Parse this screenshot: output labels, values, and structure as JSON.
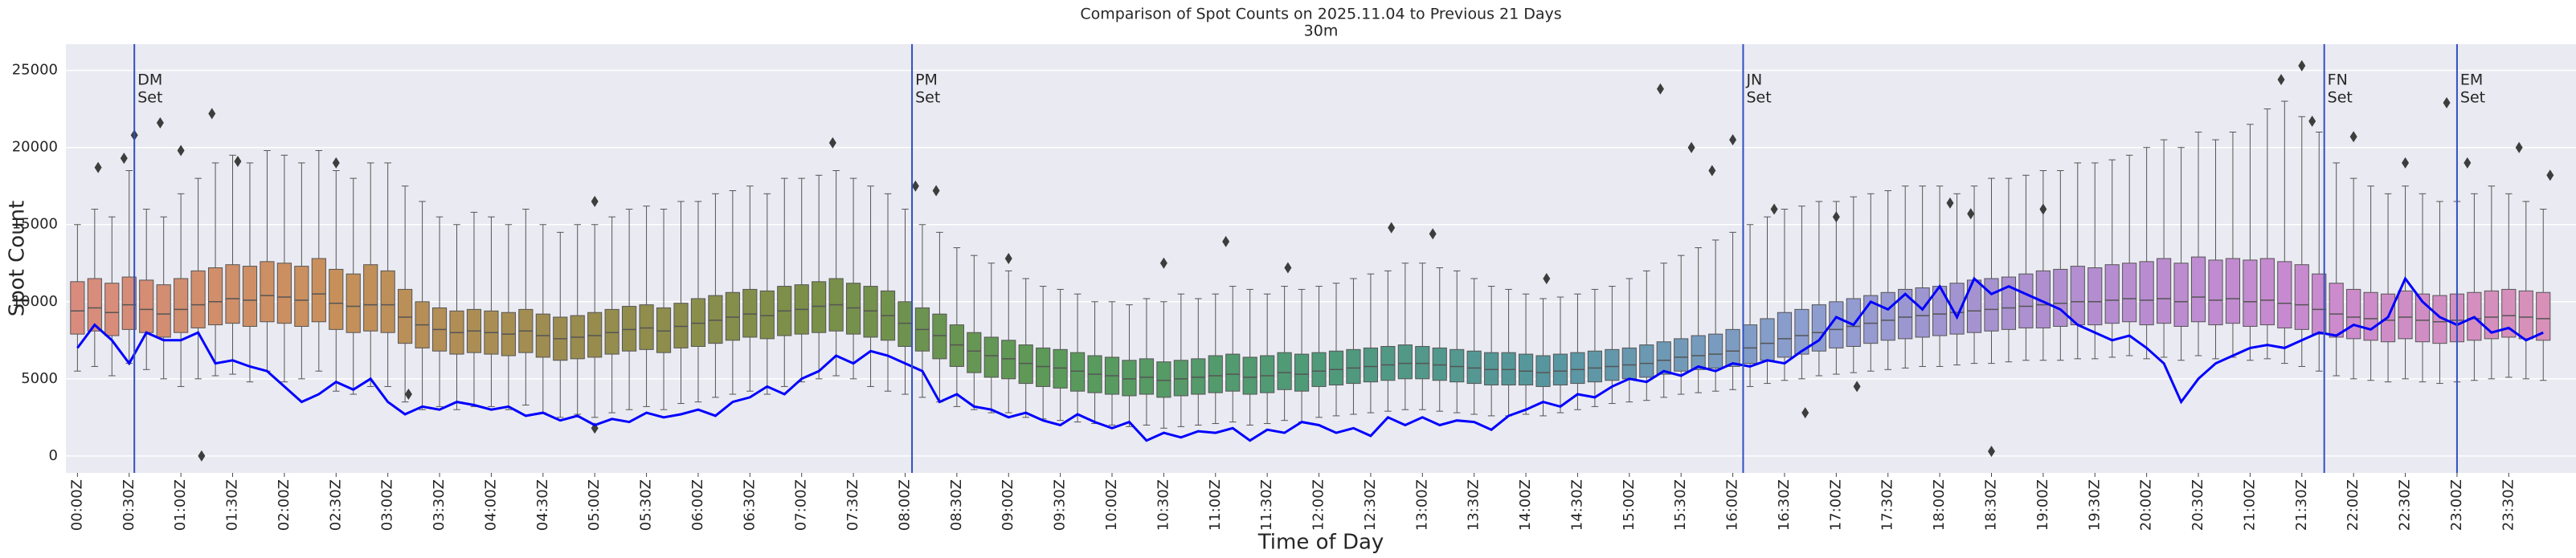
{
  "chart_data": {
    "type": "box",
    "title": "Comparison of Spot Counts on 2025.11.04 to Previous 21 Days",
    "subtitle": "30m",
    "xlabel": "Time of Day",
    "ylabel": "Spot Count",
    "ylim": [
      -1100,
      26700
    ],
    "yticks": [
      0,
      5000,
      10000,
      15000,
      20000,
      25000
    ],
    "xlim": [
      -0.67,
      144.9
    ],
    "grid": true,
    "categories": [
      "00:00Z",
      null,
      null,
      "00:30Z",
      null,
      null,
      "01:00Z",
      null,
      null,
      "01:30Z",
      null,
      null,
      "02:00Z",
      null,
      null,
      "02:30Z",
      null,
      null,
      "03:00Z",
      null,
      null,
      "03:30Z",
      null,
      null,
      "04:00Z",
      null,
      null,
      "04:30Z",
      null,
      null,
      "05:00Z",
      null,
      null,
      "05:30Z",
      null,
      null,
      "06:00Z",
      null,
      null,
      "06:30Z",
      null,
      null,
      "07:00Z",
      null,
      null,
      "07:30Z",
      null,
      null,
      "08:00Z",
      null,
      null,
      "08:30Z",
      null,
      null,
      "09:00Z",
      null,
      null,
      "09:30Z",
      null,
      null,
      "10:00Z",
      null,
      null,
      "10:30Z",
      null,
      null,
      "11:00Z",
      null,
      null,
      "11:30Z",
      null,
      null,
      "12:00Z",
      null,
      null,
      "12:30Z",
      null,
      null,
      "13:00Z",
      null,
      null,
      "13:30Z",
      null,
      null,
      "14:00Z",
      null,
      null,
      "14:30Z",
      null,
      null,
      "15:00Z",
      null,
      null,
      "15:30Z",
      null,
      null,
      "16:00Z",
      null,
      null,
      "16:30Z",
      null,
      null,
      "17:00Z",
      null,
      null,
      "17:30Z",
      null,
      null,
      "18:00Z",
      null,
      null,
      "18:30Z",
      null,
      null,
      "19:00Z",
      null,
      null,
      "19:30Z",
      null,
      null,
      "20:00Z",
      null,
      null,
      "20:30Z",
      null,
      null,
      "21:00Z",
      null,
      null,
      "21:30Z",
      null,
      null,
      "22:00Z",
      null,
      null,
      "22:30Z",
      null,
      null,
      "23:00Z",
      null,
      null,
      "23:30Z",
      null,
      null
    ],
    "palette": [
      "#d98c7e",
      "#c9905c",
      "#9a8c4f",
      "#7a8f48",
      "#5a9a5a",
      "#4f9a78",
      "#5796a0",
      "#8c9ed0",
      "#b08ed0",
      "#c88ad0",
      "#d890b8"
    ],
    "boxes": {
      "median": [
        9400,
        9600,
        9300,
        9800,
        9500,
        9200,
        9500,
        9800,
        10000,
        10200,
        10100,
        10400,
        10300,
        10100,
        10500,
        9900,
        9700,
        9800,
        9800,
        9000,
        8500,
        8200,
        8000,
        8100,
        8000,
        7900,
        8100,
        7800,
        7600,
        7700,
        7800,
        8000,
        8200,
        8300,
        8100,
        8400,
        8600,
        8800,
        9000,
        9200,
        9100,
        9400,
        9500,
        9700,
        9800,
        9600,
        9400,
        9100,
        8600,
        8200,
        7800,
        7200,
        6800,
        6500,
        6300,
        6000,
        5800,
        5700,
        5500,
        5300,
        5200,
        5000,
        5100,
        4900,
        5000,
        5100,
        5200,
        5300,
        5100,
        5200,
        5400,
        5300,
        5500,
        5600,
        5700,
        5800,
        5900,
        6000,
        6000,
        5900,
        5800,
        5700,
        5600,
        5600,
        5500,
        5400,
        5500,
        5600,
        5700,
        5800,
        5900,
        6000,
        6200,
        6400,
        6500,
        6600,
        6800,
        7000,
        7300,
        7600,
        7800,
        8000,
        8200,
        8400,
        8600,
        8800,
        9000,
        9100,
        9200,
        9300,
        9400,
        9500,
        9600,
        9700,
        9800,
        9900,
        10000,
        10000,
        10100,
        10200,
        10100,
        10200,
        10000,
        10300,
        10100,
        10200,
        10000,
        10100,
        9900,
        9800,
        9500,
        9200,
        9000,
        8900,
        8800,
        9000,
        8800,
        8700,
        8800,
        8900,
        9000,
        9100,
        9000,
        8900
      ],
      "q1": [
        7900,
        8100,
        7800,
        8200,
        8000,
        7700,
        8000,
        8300,
        8500,
        8600,
        8400,
        8700,
        8600,
        8400,
        8700,
        8200,
        8000,
        8100,
        8000,
        7300,
        7000,
        6800,
        6600,
        6700,
        6600,
        6500,
        6700,
        6400,
        6200,
        6300,
        6400,
        6600,
        6800,
        6900,
        6700,
        7000,
        7100,
        7300,
        7500,
        7700,
        7600,
        7800,
        7900,
        8000,
        8100,
        7900,
        7700,
        7500,
        7100,
        6800,
        6300,
        5800,
        5400,
        5100,
        5000,
        4700,
        4500,
        4400,
        4200,
        4100,
        4000,
        3900,
        4000,
        3800,
        3900,
        4000,
        4100,
        4200,
        4000,
        4100,
        4300,
        4200,
        4500,
        4600,
        4700,
        4800,
        4900,
        5000,
        5000,
        4900,
        4800,
        4700,
        4600,
        4600,
        4600,
        4500,
        4600,
        4700,
        4800,
        4900,
        5000,
        5100,
        5300,
        5500,
        5600,
        5700,
        5800,
        6000,
        6200,
        6400,
        6600,
        6800,
        7000,
        7100,
        7300,
        7500,
        7600,
        7700,
        7800,
        7900,
        8000,
        8100,
        8200,
        8300,
        8300,
        8400,
        8500,
        8500,
        8600,
        8700,
        8500,
        8600,
        8400,
        8700,
        8500,
        8600,
        8400,
        8500,
        8300,
        8200,
        7900,
        7700,
        7600,
        7500,
        7400,
        7600,
        7400,
        7300,
        7400,
        7500,
        7600,
        7700,
        7600,
        7500
      ],
      "q3": [
        11300,
        11500,
        11200,
        11600,
        11400,
        11100,
        11500,
        12000,
        12200,
        12400,
        12300,
        12600,
        12500,
        12300,
        12800,
        12100,
        11800,
        12400,
        12000,
        10800,
        10000,
        9600,
        9400,
        9500,
        9400,
        9300,
        9500,
        9200,
        9000,
        9100,
        9300,
        9500,
        9700,
        9800,
        9600,
        9900,
        10200,
        10400,
        10600,
        10800,
        10700,
        11000,
        11100,
        11300,
        11500,
        11200,
        11000,
        10700,
        10000,
        9600,
        9200,
        8500,
        8000,
        7700,
        7500,
        7200,
        7000,
        6900,
        6700,
        6500,
        6400,
        6200,
        6300,
        6100,
        6200,
        6300,
        6500,
        6600,
        6400,
        6500,
        6700,
        6600,
        6700,
        6800,
        6900,
        7000,
        7100,
        7200,
        7100,
        7000,
        6900,
        6800,
        6700,
        6700,
        6600,
        6500,
        6600,
        6700,
        6800,
        6900,
        7000,
        7200,
        7400,
        7600,
        7800,
        7900,
        8200,
        8500,
        8900,
        9300,
        9500,
        9800,
        10000,
        10200,
        10400,
        10600,
        10800,
        10900,
        11000,
        11200,
        11400,
        11500,
        11600,
        11800,
        12000,
        12100,
        12300,
        12200,
        12400,
        12500,
        12600,
        12800,
        12500,
        12900,
        12700,
        12800,
        12700,
        12800,
        12600,
        12400,
        11800,
        11200,
        10800,
        10600,
        10500,
        10700,
        10500,
        10400,
        10500,
        10600,
        10700,
        10800,
        10700,
        10600
      ],
      "whislo": [
        5500,
        5800,
        5200,
        6000,
        5600,
        5000,
        4500,
        5000,
        5200,
        5300,
        4800,
        5500,
        4800,
        5000,
        5500,
        4200,
        4000,
        4500,
        4500,
        3500,
        3000,
        3200,
        3000,
        3200,
        3200,
        3000,
        3300,
        2800,
        2500,
        2700,
        2500,
        2800,
        3000,
        3200,
        3000,
        3400,
        3500,
        3800,
        4000,
        4200,
        4000,
        4500,
        4800,
        5000,
        5200,
        5000,
        4500,
        4200,
        4000,
        3800,
        3500,
        3200,
        3000,
        2800,
        2800,
        2500,
        2400,
        2300,
        2200,
        2100,
        2000,
        1900,
        2000,
        1800,
        1900,
        2000,
        2100,
        2200,
        2000,
        2100,
        2300,
        2200,
        2500,
        2600,
        2700,
        2800,
        2900,
        3000,
        3000,
        2900,
        2800,
        2700,
        2600,
        2600,
        2700,
        2600,
        2800,
        3000,
        3200,
        3400,
        3500,
        3600,
        3800,
        4000,
        4100,
        4200,
        4300,
        4500,
        4700,
        4900,
        5000,
        5200,
        5300,
        5400,
        5500,
        5600,
        5700,
        5800,
        5800,
        5900,
        6000,
        6000,
        6100,
        6200,
        6200,
        6200,
        6300,
        6300,
        6400,
        6500,
        6300,
        6400,
        6200,
        6500,
        6300,
        6400,
        6200,
        6300,
        6000,
        5800,
        5500,
        5200,
        5000,
        4900,
        4800,
        5000,
        4800,
        4700,
        4800,
        4900,
        5000,
        5100,
        5000,
        4900
      ],
      "whishi": [
        15000,
        16000,
        15500,
        18500,
        16000,
        15500,
        17000,
        18000,
        19000,
        19500,
        19000,
        19800,
        19500,
        19000,
        19800,
        18500,
        18000,
        19000,
        19000,
        17500,
        16500,
        15500,
        15000,
        15800,
        15500,
        15000,
        16000,
        15000,
        14500,
        15000,
        15000,
        15500,
        16000,
        16200,
        16000,
        16500,
        16500,
        17000,
        17200,
        17500,
        17000,
        18000,
        18000,
        18200,
        18500,
        18000,
        17500,
        17000,
        16000,
        15000,
        14500,
        13500,
        13000,
        12500,
        12000,
        11500,
        11000,
        10800,
        10500,
        10000,
        10000,
        9800,
        10200,
        10000,
        10500,
        10200,
        10500,
        11000,
        10800,
        10500,
        11000,
        10800,
        11000,
        11200,
        11500,
        11800,
        12000,
        12500,
        12500,
        12200,
        12000,
        11500,
        11000,
        10800,
        10500,
        10200,
        10300,
        10500,
        10800,
        11000,
        11500,
        12000,
        12500,
        13000,
        13500,
        14000,
        14500,
        15000,
        15500,
        16000,
        16200,
        16500,
        16500,
        16800,
        17000,
        17200,
        17500,
        17500,
        17500,
        17000,
        17500,
        18000,
        18000,
        18200,
        18500,
        18500,
        19000,
        19000,
        19200,
        19500,
        20000,
        20500,
        20000,
        21000,
        20500,
        21000,
        21500,
        22500,
        23000,
        22000,
        21000,
        19000,
        18000,
        17500,
        17000,
        17500,
        17000,
        16500,
        16500,
        17000,
        17500,
        17000,
        16500,
        16000
      ]
    },
    "outliers": {
      "x": [
        1.2,
        2.7,
        3.3,
        4.8,
        6,
        7.8,
        9.3,
        15,
        19.2,
        30,
        30,
        43.8,
        48.6,
        49.8,
        54,
        63,
        66.6,
        70.2,
        76.2,
        78.6,
        85.2,
        91.8,
        93.6,
        94.8,
        96,
        98.4,
        102,
        103.2,
        108.6,
        109.8,
        111,
        114,
        127.8,
        129,
        129.6,
        132,
        135,
        137.4,
        138.6,
        141.6,
        143.4,
        100.2,
        7.2
      ],
      "values": [
        18700,
        19300,
        20800,
        21600,
        19800,
        22200,
        19100,
        19000,
        4000,
        16500,
        1800,
        20300,
        17500,
        17200,
        12800,
        12500,
        13900,
        12200,
        14800,
        14400,
        11500,
        23800,
        20000,
        18500,
        20500,
        16000,
        15500,
        4500,
        16400,
        15700,
        300,
        16000,
        24400,
        25300,
        21700,
        20700,
        19000,
        22900,
        19000,
        20000,
        18200,
        2800,
        0
      ]
    },
    "line": {
      "color": "#0000ff",
      "values": [
        7000,
        8500,
        7500,
        6000,
        8000,
        7500,
        7500,
        8000,
        6000,
        6200,
        5800,
        5500,
        4500,
        3500,
        4000,
        4800,
        4300,
        5000,
        3500,
        2700,
        3200,
        3000,
        3500,
        3300,
        3000,
        3200,
        2600,
        2800,
        2300,
        2600,
        2000,
        2400,
        2200,
        2800,
        2500,
        2700,
        3000,
        2600,
        3500,
        3800,
        4500,
        4000,
        5000,
        5500,
        6500,
        6000,
        6800,
        6500,
        6000,
        5500,
        3500,
        4000,
        3200,
        3000,
        2500,
        2800,
        2300,
        2000,
        2700,
        2200,
        1800,
        2200,
        1000,
        1500,
        1200,
        1600,
        1500,
        1800,
        1000,
        1700,
        1500,
        2200,
        2000,
        1500,
        1800,
        1300,
        2500,
        2000,
        2500,
        2000,
        2300,
        2200,
        1700,
        2600,
        3000,
        3500,
        3200,
        4000,
        3800,
        4500,
        5000,
        4800,
        5500,
        5200,
        5800,
        5500,
        6000,
        5800,
        6200,
        6000,
        6800,
        7500,
        9000,
        8500,
        10000,
        9500,
        10500,
        9500,
        11000,
        9000,
        11500,
        10500,
        11000,
        10500,
        10000,
        9500,
        8500,
        8000,
        7500,
        7800,
        7000,
        6000,
        3500,
        5000,
        6000,
        6500,
        7000,
        7200,
        7000,
        7500,
        8000,
        7800,
        8500,
        8200,
        9000,
        11500,
        10000,
        9000,
        8500,
        9000,
        8000,
        8300,
        7500,
        8000
      ]
    },
    "vlines": {
      "color": "#3050c0",
      "items": [
        {
          "x": 3.3,
          "label": [
            "DM",
            "Set"
          ]
        },
        {
          "x": 48.4,
          "label": [
            "PM",
            "Set"
          ]
        },
        {
          "x": 96.6,
          "label": [
            "JN",
            "Set"
          ]
        },
        {
          "x": 130.3,
          "label": [
            "FN",
            "Set"
          ]
        },
        {
          "x": 138,
          "label": [
            "EM",
            "Set"
          ]
        }
      ]
    }
  }
}
